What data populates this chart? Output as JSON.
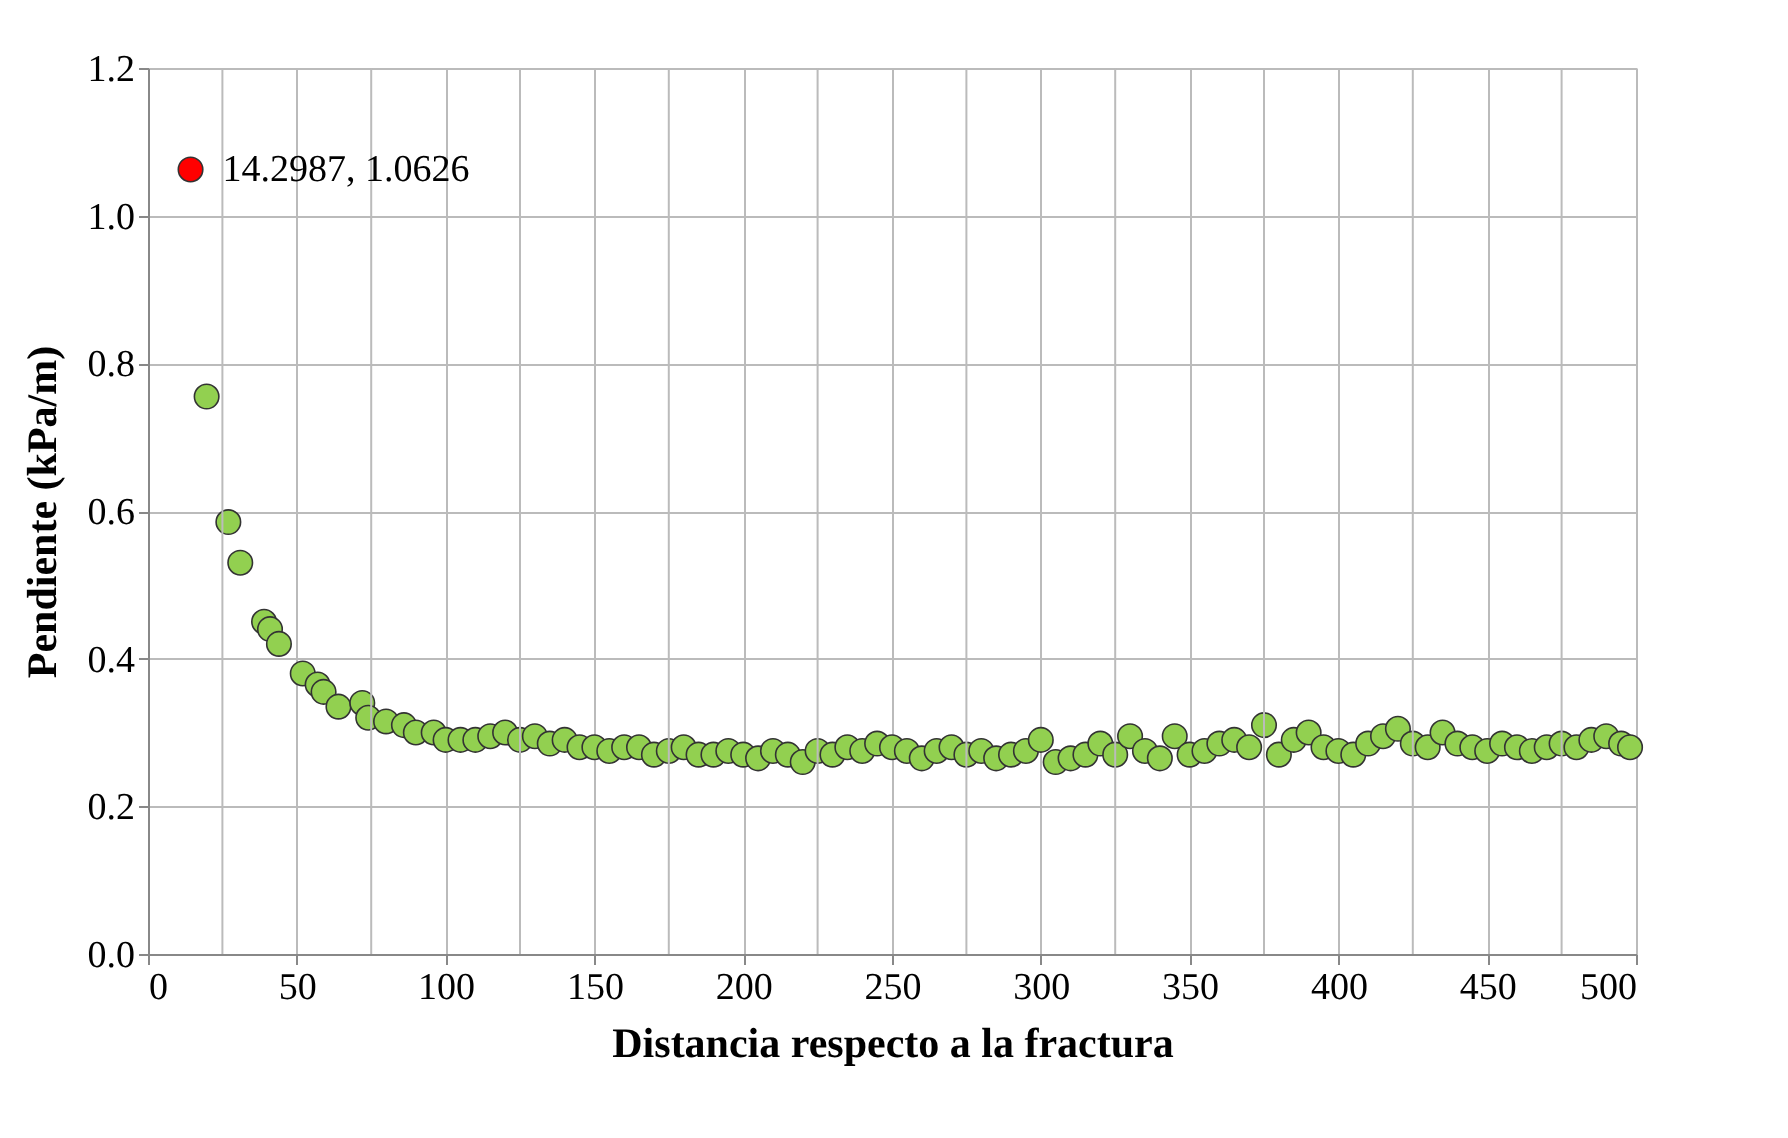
{
  "chart_data": {
    "type": "scatter",
    "xlabel": "Distancia respecto a la fractura",
    "ylabel": "Pendiente (kPa/m)",
    "xlim": [
      0,
      500
    ],
    "ylim": [
      0,
      1.2
    ],
    "xticks": [
      0,
      {
        "value": 25,
        "label": null
      },
      50,
      {
        "value": 75,
        "label": null
      },
      100,
      {
        "value": 125,
        "label": null
      },
      150,
      {
        "value": 175,
        "label": null
      },
      200,
      {
        "value": 225,
        "label": null
      },
      250,
      {
        "value": 275,
        "label": null
      },
      300,
      {
        "value": 325,
        "label": null
      },
      350,
      {
        "value": 375,
        "label": null
      },
      400,
      {
        "value": 425,
        "label": null
      },
      450,
      {
        "value": 475,
        "label": null
      },
      500
    ],
    "yticks": [
      {
        "value": 0,
        "label": "0.0"
      },
      0.2,
      0.4,
      0.6,
      0.8,
      {
        "value": 1,
        "label": "1.0"
      },
      1.2
    ],
    "grid": true,
    "legend": false,
    "marker": "circle",
    "annotations": [
      {
        "text": "14.2987, 1.0626",
        "x": 14.2987,
        "y": 1.0626
      }
    ],
    "series": [
      {
        "color": "#ff0000",
        "x": [
          14.2987
        ],
        "values": [
          1.0626
        ]
      },
      {
        "color": "#92d050",
        "x": [
          19.7,
          27,
          31,
          39,
          41,
          44,
          52,
          57,
          59,
          64,
          72,
          74,
          80,
          86,
          90,
          96,
          100,
          105,
          110,
          115,
          120,
          125,
          130,
          135,
          140,
          145,
          150,
          155,
          160,
          165,
          170,
          175,
          180,
          185,
          190,
          195,
          200,
          205,
          210,
          215,
          220,
          225,
          230,
          235,
          240,
          245,
          250,
          255,
          260,
          265,
          270,
          275,
          280,
          285,
          290,
          295,
          300,
          305,
          310,
          315,
          320,
          325,
          330,
          335,
          340,
          345,
          350,
          355,
          360,
          365,
          370,
          375,
          380,
          385,
          390,
          395,
          400,
          405,
          410,
          415,
          420,
          425,
          430,
          435,
          440,
          445,
          450,
          455,
          460,
          465,
          470,
          475,
          480,
          485,
          490,
          495,
          498
        ],
        "values": [
          0.755,
          0.585,
          0.53,
          0.45,
          0.44,
          0.42,
          0.38,
          0.365,
          0.355,
          0.335,
          0.34,
          0.32,
          0.315,
          0.31,
          0.3,
          0.3,
          0.29,
          0.29,
          0.29,
          0.295,
          0.3,
          0.29,
          0.295,
          0.285,
          0.29,
          0.28,
          0.28,
          0.275,
          0.28,
          0.28,
          0.27,
          0.275,
          0.28,
          0.27,
          0.27,
          0.275,
          0.27,
          0.265,
          0.275,
          0.27,
          0.26,
          0.275,
          0.27,
          0.28,
          0.275,
          0.285,
          0.28,
          0.275,
          0.265,
          0.275,
          0.28,
          0.27,
          0.275,
          0.265,
          0.27,
          0.275,
          0.29,
          0.26,
          0.265,
          0.27,
          0.285,
          0.27,
          0.295,
          0.275,
          0.265,
          0.295,
          0.27,
          0.275,
          0.285,
          0.29,
          0.28,
          0.31,
          0.27,
          0.29,
          0.3,
          0.28,
          0.275,
          0.27,
          0.285,
          0.295,
          0.305,
          0.285,
          0.28,
          0.3,
          0.285,
          0.28,
          0.275,
          0.285,
          0.28,
          0.275,
          0.28,
          0.285,
          0.28,
          0.29,
          0.295,
          0.285,
          0.28
        ]
      }
    ]
  }
}
